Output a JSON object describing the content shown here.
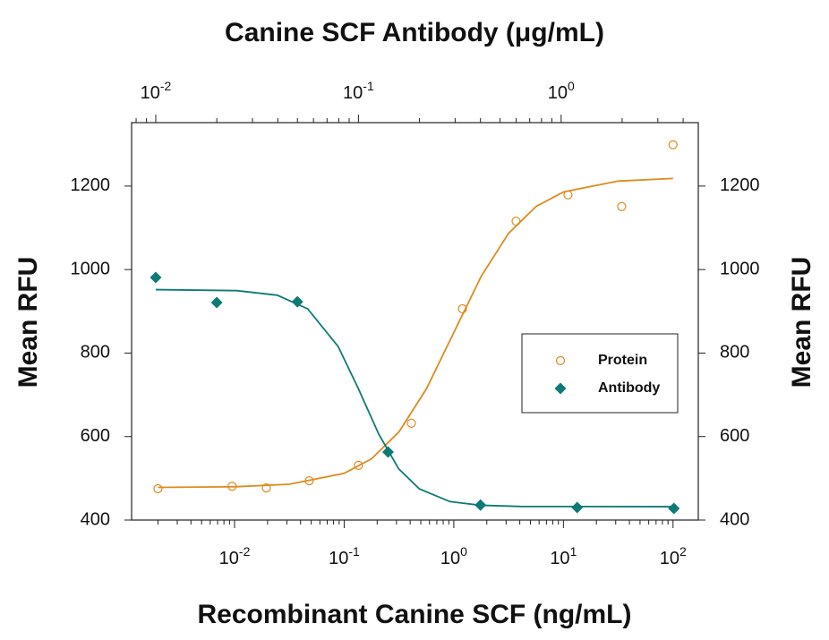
{
  "chart_data": {
    "type": "scatter",
    "x2label": "Canine SCF Antibody (μg/mL)",
    "xlabel": "Recombinant Canine SCF (ng/mL)",
    "ylabel": "Mean RFU",
    "y2label": "Mean RFU",
    "xscale": "log",
    "xlim": [
      0.00115,
      170
    ],
    "xticks": [
      {
        "value": 0.01,
        "label": "10^-2"
      },
      {
        "value": 0.1,
        "label": "10^-1"
      },
      {
        "value": 1,
        "label": "10^0"
      },
      {
        "value": 10,
        "label": "10^1"
      },
      {
        "value": 100,
        "label": "10^2"
      }
    ],
    "x2lim": [
      0.0076,
      4.75
    ],
    "x2ticks": [
      {
        "value": 0.01,
        "label": "10^-2"
      },
      {
        "value": 0.1,
        "label": "10^-1"
      },
      {
        "value": 1,
        "label": "10^0"
      }
    ],
    "ylim": [
      400,
      1352
    ],
    "yticks": [
      400,
      600,
      800,
      1000,
      1200
    ],
    "y2lim": [
      400,
      1352
    ],
    "y2ticks": [
      400,
      600,
      800,
      1000,
      1200
    ],
    "legend": "center-right",
    "series": [
      {
        "name": "Protein",
        "color": "#e08a1e",
        "marker": "circle",
        "x": [
          0.002,
          0.0095,
          0.0195,
          0.048,
          0.135,
          0.41,
          1.2,
          3.7,
          11,
          34,
          100
        ],
        "values": [
          475,
          481,
          477,
          494,
          531,
          632,
          906,
          1116,
          1179,
          1151,
          1299
        ],
        "fit": {
          "x": [
            0.002,
            0.01,
            0.0316,
            0.1,
            0.178,
            0.316,
            0.562,
            1,
            1.78,
            3.16,
            5.62,
            10,
            31.6,
            100
          ],
          "values": [
            478.2,
            479.7,
            485.7,
            511.9,
            546.9,
            611.2,
            714.1,
            849,
            984,
            1086.8,
            1151,
            1186,
            1212,
            1218.3
          ]
        }
      },
      {
        "name": "Antibody",
        "color": "#0e7a76",
        "marker": "diamond",
        "xaxis": "x2",
        "x": [
          0.01,
          0.02,
          0.05,
          0.14,
          0.4,
          1.2,
          3.6
        ],
        "values": [
          981,
          921,
          923,
          563,
          436,
          430,
          428
        ],
        "fit": {
          "x": [
            0.01,
            0.0251,
            0.0398,
            0.0562,
            0.0794,
            0.1,
            0.126,
            0.158,
            0.2,
            0.282,
            0.398,
            0.631,
            3.63
          ],
          "values": [
            952,
            949.6,
            938.6,
            905.9,
            815.8,
            714.4,
            605.7,
            522.7,
            474.6,
            444.4,
            435.5,
            432.6,
            432
          ]
        }
      }
    ]
  }
}
